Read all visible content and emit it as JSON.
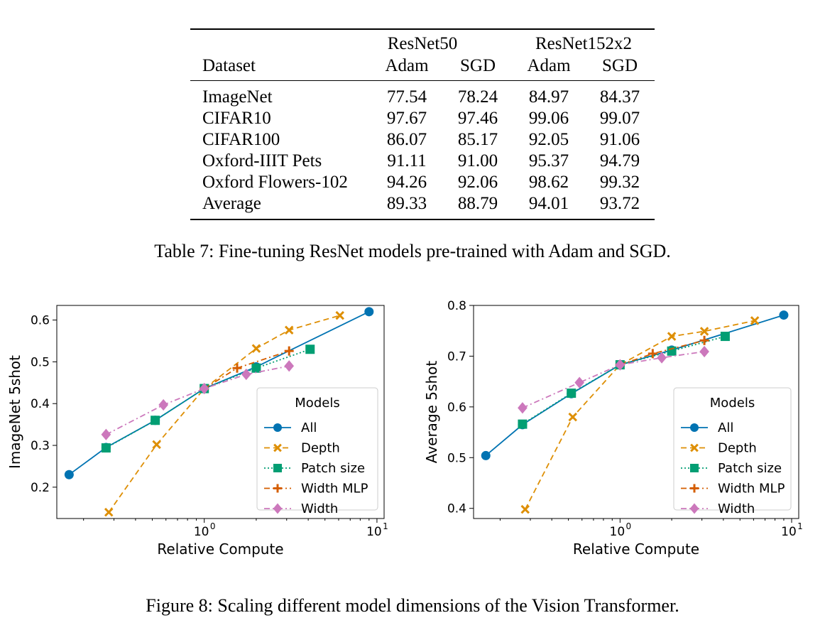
{
  "table": {
    "header_groups": [
      "ResNet50",
      "ResNet152x2"
    ],
    "columns": [
      "Dataset",
      "Adam",
      "SGD",
      "Adam",
      "SGD"
    ],
    "rows": [
      [
        "ImageNet",
        "77.54",
        "78.24",
        "84.97",
        "84.37"
      ],
      [
        "CIFAR10",
        "97.67",
        "97.46",
        "99.06",
        "99.07"
      ],
      [
        "CIFAR100",
        "86.07",
        "85.17",
        "92.05",
        "91.06"
      ],
      [
        "Oxford-IIIT Pets",
        "91.11",
        "91.00",
        "95.37",
        "94.79"
      ],
      [
        "Oxford Flowers-102",
        "94.26",
        "92.06",
        "98.62",
        "99.32"
      ],
      [
        "Average",
        "89.33",
        "88.79",
        "94.01",
        "93.72"
      ]
    ],
    "caption": "Table 7: Fine-tuning ResNet models pre-trained with Adam and SGD."
  },
  "figure_caption": "Figure 8: Scaling different model dimensions of the Vision Transformer.",
  "chart_data": [
    {
      "type": "line",
      "xscale": "log",
      "xlabel": "Relative Compute",
      "ylabel": "ImageNet 5shot",
      "xlim": [
        0.14,
        11
      ],
      "ylim": [
        0.125,
        0.635
      ],
      "xticks": [
        "10^0",
        "10^1"
      ],
      "yticks": [
        "0.2",
        "0.3",
        "0.4",
        "0.5",
        "0.6"
      ],
      "legend_title": "Models",
      "legend_position": "lower right",
      "series": [
        {
          "name": "All",
          "color": "#0173b2",
          "marker": "circle",
          "dash": "solid",
          "points": [
            [
              0.165,
              0.23
            ],
            [
              0.27,
              0.295
            ],
            [
              0.52,
              0.36
            ],
            [
              1.0,
              0.436
            ],
            [
              2.0,
              0.488
            ],
            [
              9.0,
              0.62
            ]
          ]
        },
        {
          "name": "Depth",
          "color": "#de8f05",
          "marker": "x",
          "dash": "dashed",
          "points": [
            [
              0.28,
              0.14
            ],
            [
              0.53,
              0.302
            ],
            [
              1.0,
              0.436
            ],
            [
              2.0,
              0.532
            ],
            [
              3.1,
              0.576
            ],
            [
              6.1,
              0.611
            ]
          ]
        },
        {
          "name": "Patch size",
          "color": "#029e73",
          "marker": "square",
          "dash": "dotted",
          "points": [
            [
              0.27,
              0.294
            ],
            [
              0.52,
              0.36
            ],
            [
              1.0,
              0.436
            ],
            [
              2.0,
              0.485
            ],
            [
              4.1,
              0.53
            ]
          ]
        },
        {
          "name": "Width MLP",
          "color": "#d55e00",
          "marker": "plus",
          "dash": "dashdot",
          "points": [
            [
              1.0,
              0.436
            ],
            [
              1.55,
              0.485
            ],
            [
              3.1,
              0.526
            ]
          ]
        },
        {
          "name": "Width",
          "color": "#cc78bc",
          "marker": "diamond",
          "dash": "dashdot",
          "points": [
            [
              0.27,
              0.326
            ],
            [
              0.58,
              0.397
            ],
            [
              1.0,
              0.436
            ],
            [
              1.75,
              0.47
            ],
            [
              3.1,
              0.49
            ]
          ]
        }
      ]
    },
    {
      "type": "line",
      "xscale": "log",
      "xlabel": "Relative Compute",
      "ylabel": "Average 5shot",
      "xlim": [
        0.14,
        11
      ],
      "ylim": [
        0.38,
        0.8
      ],
      "xticks": [
        "10^0",
        "10^1"
      ],
      "yticks": [
        "0.4",
        "0.5",
        "0.6",
        "0.7",
        "0.8"
      ],
      "legend_title": "Models",
      "legend_position": "lower right",
      "series": [
        {
          "name": "All",
          "color": "#0173b2",
          "marker": "circle",
          "dash": "solid",
          "points": [
            [
              0.165,
              0.504
            ],
            [
              0.27,
              0.565
            ],
            [
              0.52,
              0.626
            ],
            [
              1.0,
              0.683
            ],
            [
              2.0,
              0.712
            ],
            [
              9.0,
              0.781
            ]
          ]
        },
        {
          "name": "Depth",
          "color": "#de8f05",
          "marker": "x",
          "dash": "dashed",
          "points": [
            [
              0.28,
              0.398
            ],
            [
              0.53,
              0.58
            ],
            [
              1.0,
              0.683
            ],
            [
              2.0,
              0.739
            ],
            [
              3.1,
              0.749
            ],
            [
              6.1,
              0.77
            ]
          ]
        },
        {
          "name": "Patch size",
          "color": "#029e73",
          "marker": "square",
          "dash": "dotted",
          "points": [
            [
              0.27,
              0.566
            ],
            [
              0.52,
              0.627
            ],
            [
              1.0,
              0.683
            ],
            [
              2.0,
              0.71
            ],
            [
              4.1,
              0.739
            ]
          ]
        },
        {
          "name": "Width MLP",
          "color": "#d55e00",
          "marker": "plus",
          "dash": "dashdot",
          "points": [
            [
              1.0,
              0.683
            ],
            [
              1.55,
              0.705
            ],
            [
              3.1,
              0.731
            ]
          ]
        },
        {
          "name": "Width",
          "color": "#cc78bc",
          "marker": "diamond",
          "dash": "dashdot",
          "points": [
            [
              0.27,
              0.598
            ],
            [
              0.58,
              0.648
            ],
            [
              1.0,
              0.683
            ],
            [
              1.75,
              0.697
            ],
            [
              3.1,
              0.709
            ]
          ]
        }
      ]
    }
  ]
}
